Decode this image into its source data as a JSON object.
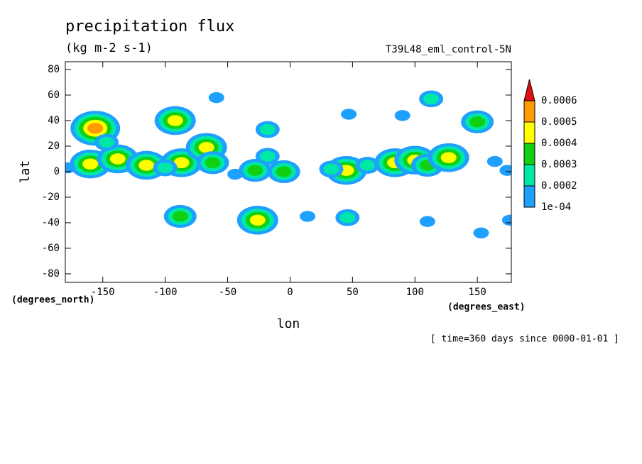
{
  "chart_data": {
    "type": "contour",
    "title": "precipitation flux",
    "subtitle": "(kg m-2 s-1)",
    "dataset": "T39L48_eml_control-5N",
    "x_label": "lon",
    "y_label": "lat",
    "x_units": "(degrees_east)",
    "y_units": "(degrees_north)",
    "footnote": "[ time=360 days since 0000-01-01 ]",
    "xlim": [
      -180,
      177.2
    ],
    "xticks": [
      -150,
      -100,
      -50,
      0,
      50,
      100,
      150
    ],
    "ylim": [
      -86.7,
      86.1
    ],
    "yticks": [
      -80,
      -60,
      -40,
      -20,
      0,
      20,
      40,
      60,
      80
    ],
    "levels": [
      {
        "value": 0.0001,
        "label": "1e-04"
      },
      0.0002,
      0.0003,
      0.0004,
      0.0005,
      0.0006
    ],
    "colors": [
      "#1ea0ff",
      "#00e8a8",
      "#10d010",
      "#ffff00",
      "#ff9a00",
      "#e01010"
    ],
    "x": [
      -156,
      -160,
      -138,
      -147,
      -115,
      -92,
      -87,
      -100,
      -67,
      -62,
      -59,
      -18,
      -18,
      -28,
      -5,
      -44,
      -26,
      -88,
      14,
      46,
      45,
      33,
      47,
      62,
      84,
      100,
      110,
      127,
      113,
      90,
      150,
      164,
      174,
      110,
      153,
      176,
      -178
    ],
    "y": [
      34,
      6,
      10,
      23,
      5,
      40,
      7,
      3,
      19,
      7,
      58,
      33,
      12,
      1,
      0,
      -2,
      -38,
      -35,
      -35,
      -36,
      1,
      2,
      45,
      5,
      7,
      9,
      5,
      11,
      57,
      44,
      39,
      8,
      1,
      -39,
      -48,
      -38,
      3
    ],
    "values": [
      0.00055,
      0.00045,
      0.00045,
      0.00025,
      0.00045,
      0.00045,
      0.00045,
      0.00025,
      0.00045,
      0.00035,
      0.00015,
      0.00025,
      0.00025,
      0.00035,
      0.00035,
      0.00015,
      0.00045,
      0.00035,
      0.00015,
      0.00025,
      0.00045,
      0.00025,
      0.00015,
      0.00025,
      0.00045,
      0.00045,
      0.00035,
      0.00045,
      0.00025,
      0.00015,
      0.00035,
      0.00015,
      0.00015,
      0.00015,
      0.00015,
      0.00015,
      0.00015
    ]
  }
}
